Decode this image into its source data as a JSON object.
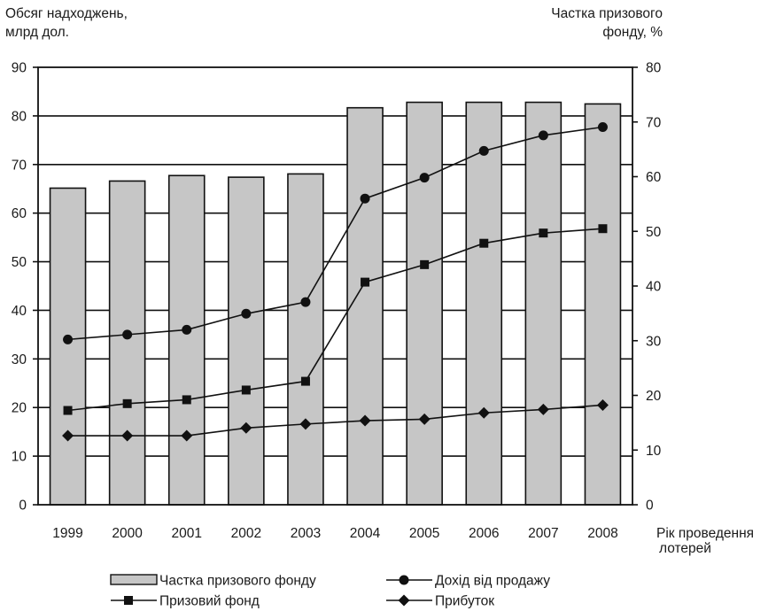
{
  "chart_data": {
    "type": "bar",
    "categories": [
      "1999",
      "2000",
      "2001",
      "2002",
      "2003",
      "2004",
      "2005",
      "2006",
      "2007",
      "2008"
    ],
    "y_left_label": [
      "Обсяг надходжень,",
      "млрд дол."
    ],
    "y_right_label": [
      "Частка призового",
      "фонду, %"
    ],
    "x_label": [
      "Рік проведення",
      "лотерей"
    ],
    "y_left_range": [
      0,
      90
    ],
    "y_left_ticks": [
      "0",
      "10",
      "20",
      "30",
      "40",
      "50",
      "60",
      "70",
      "80",
      "90"
    ],
    "y_right_range": [
      0,
      80
    ],
    "y_right_ticks": [
      "0",
      "10",
      "20",
      "30",
      "40",
      "50",
      "60",
      "70",
      "80"
    ],
    "grid": "horizontal",
    "legend_position": "bottom",
    "bar_series": {
      "name": "Частка призового фонду",
      "axis": "right",
      "values": [
        57.9,
        59.2,
        60.2,
        59.9,
        60.5,
        72.6,
        73.6,
        73.6,
        73.6,
        73.3
      ]
    },
    "line_series": [
      {
        "name": "Дохід від продажу",
        "axis": "left",
        "marker": "circle",
        "values": [
          34,
          35,
          36,
          39.3,
          41.7,
          63,
          67.3,
          72.8,
          76,
          77.7
        ]
      },
      {
        "name": "Призовий фонд",
        "axis": "left",
        "marker": "square",
        "values": [
          19.4,
          20.8,
          21.6,
          23.6,
          25.4,
          45.8,
          49.4,
          53.8,
          55.9,
          56.8
        ]
      },
      {
        "name": "Прибуток",
        "axis": "left",
        "marker": "diamond",
        "values": [
          14.2,
          14.2,
          14.2,
          15.8,
          16.6,
          17.3,
          17.6,
          18.9,
          19.6,
          20.5
        ]
      }
    ],
    "legend": [
      {
        "name": "Частка призового фонду",
        "marker": "bar"
      },
      {
        "name": "Дохід від продажу",
        "marker": "circle"
      },
      {
        "name": "Призовий фонд",
        "marker": "square"
      },
      {
        "name": "Прибуток",
        "marker": "diamond"
      }
    ]
  }
}
